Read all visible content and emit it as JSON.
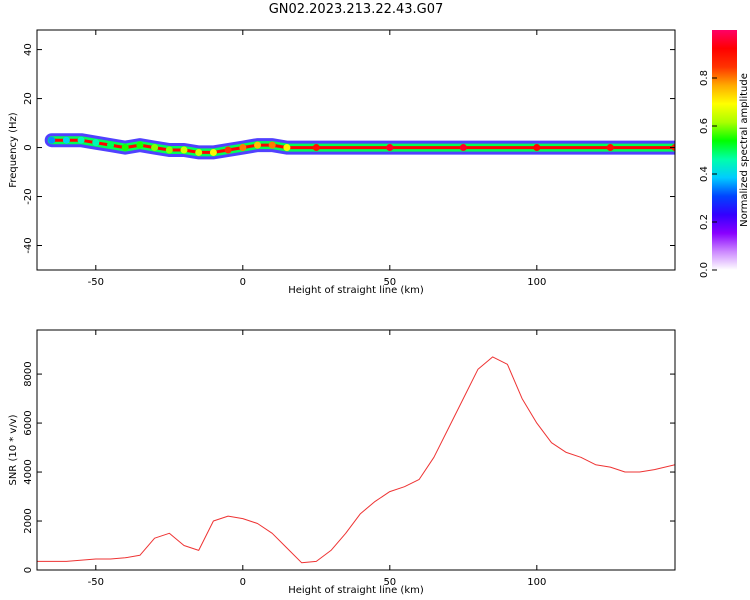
{
  "title": "GN02.2023.213.22.43.G07",
  "colors": {
    "series": "#ee3333",
    "axis": "#000000",
    "colorbar_stops": [
      "#ffffff",
      "#cc88ff",
      "#8800ff",
      "#3300ff",
      "#0044ff",
      "#00ccff",
      "#00ffaa",
      "#00ff00",
      "#aaff00",
      "#ffff00",
      "#ffaa00",
      "#ff3300",
      "#ff0000",
      "#ff0066"
    ]
  },
  "chart_data": [
    {
      "type": "heatmap",
      "xlabel": "Height of straight line (km)",
      "ylabel": "Frequency (Hz)",
      "xlim": [
        -70,
        147
      ],
      "ylim": [
        -50,
        48
      ],
      "x_ticks": [
        -50,
        0,
        50,
        100
      ],
      "y_ticks": [
        -40,
        -20,
        0,
        20,
        40
      ],
      "ridge": [
        {
          "x": -65,
          "y": 3,
          "amp": 0.35
        },
        {
          "x": -60,
          "y": 3,
          "amp": 0.4
        },
        {
          "x": -55,
          "y": 3,
          "amp": 0.45
        },
        {
          "x": -50,
          "y": 2,
          "amp": 0.45
        },
        {
          "x": -45,
          "y": 1,
          "amp": 0.5
        },
        {
          "x": -40,
          "y": 0,
          "amp": 0.55
        },
        {
          "x": -35,
          "y": 1,
          "amp": 0.55
        },
        {
          "x": -30,
          "y": 0,
          "amp": 0.6
        },
        {
          "x": -25,
          "y": -1,
          "amp": 0.6
        },
        {
          "x": -20,
          "y": -1,
          "amp": 0.65
        },
        {
          "x": -15,
          "y": -2,
          "amp": 0.65
        },
        {
          "x": -10,
          "y": -2,
          "amp": 0.7
        },
        {
          "x": -5,
          "y": -1,
          "amp": 0.85
        },
        {
          "x": 0,
          "y": 0,
          "amp": 0.8
        },
        {
          "x": 5,
          "y": 1,
          "amp": 0.75
        },
        {
          "x": 10,
          "y": 1,
          "amp": 0.8
        },
        {
          "x": 15,
          "y": 0,
          "amp": 0.7
        },
        {
          "x": 25,
          "y": 0,
          "amp": 0.9
        },
        {
          "x": 50,
          "y": 0,
          "amp": 0.95
        },
        {
          "x": 75,
          "y": 0,
          "amp": 0.95
        },
        {
          "x": 100,
          "y": 0,
          "amp": 0.92
        },
        {
          "x": 125,
          "y": 0,
          "amp": 0.9
        },
        {
          "x": 147,
          "y": 0,
          "amp": 0.88
        }
      ],
      "colorbar": {
        "label": "Normalized spectral amplitude",
        "range": [
          0,
          1
        ],
        "ticks": [
          0.0,
          0.2,
          0.4,
          0.6,
          0.8
        ]
      }
    },
    {
      "type": "line",
      "xlabel": "Height of straight line (km)",
      "ylabel": "SNR (10 * v/v)",
      "xlim": [
        -70,
        147
      ],
      "ylim": [
        0,
        9800
      ],
      "x_ticks": [
        -50,
        0,
        50,
        100
      ],
      "y_ticks": [
        0,
        2000,
        4000,
        6000,
        8000
      ],
      "series": [
        {
          "x": [
            -70,
            -60,
            -50,
            -45,
            -40,
            -35,
            -30,
            -25,
            -20,
            -15,
            -10,
            -5,
            0,
            5,
            10,
            15,
            20,
            25,
            30,
            35,
            40,
            45,
            50,
            55,
            60,
            65,
            70,
            75,
            80,
            85,
            90,
            95,
            100,
            105,
            110,
            115,
            120,
            125,
            130,
            135,
            140,
            147
          ],
          "y": [
            350,
            350,
            450,
            450,
            500,
            600,
            1300,
            1500,
            1000,
            800,
            2000,
            2200,
            2100,
            1900,
            1500,
            900,
            300,
            350,
            800,
            1500,
            2300,
            2800,
            3200,
            3400,
            3700,
            4600,
            5800,
            7000,
            8200,
            8700,
            8400,
            7000,
            6000,
            5200,
            4800,
            4600,
            4300,
            4200,
            4000,
            4000,
            4100,
            4300
          ]
        }
      ]
    }
  ]
}
